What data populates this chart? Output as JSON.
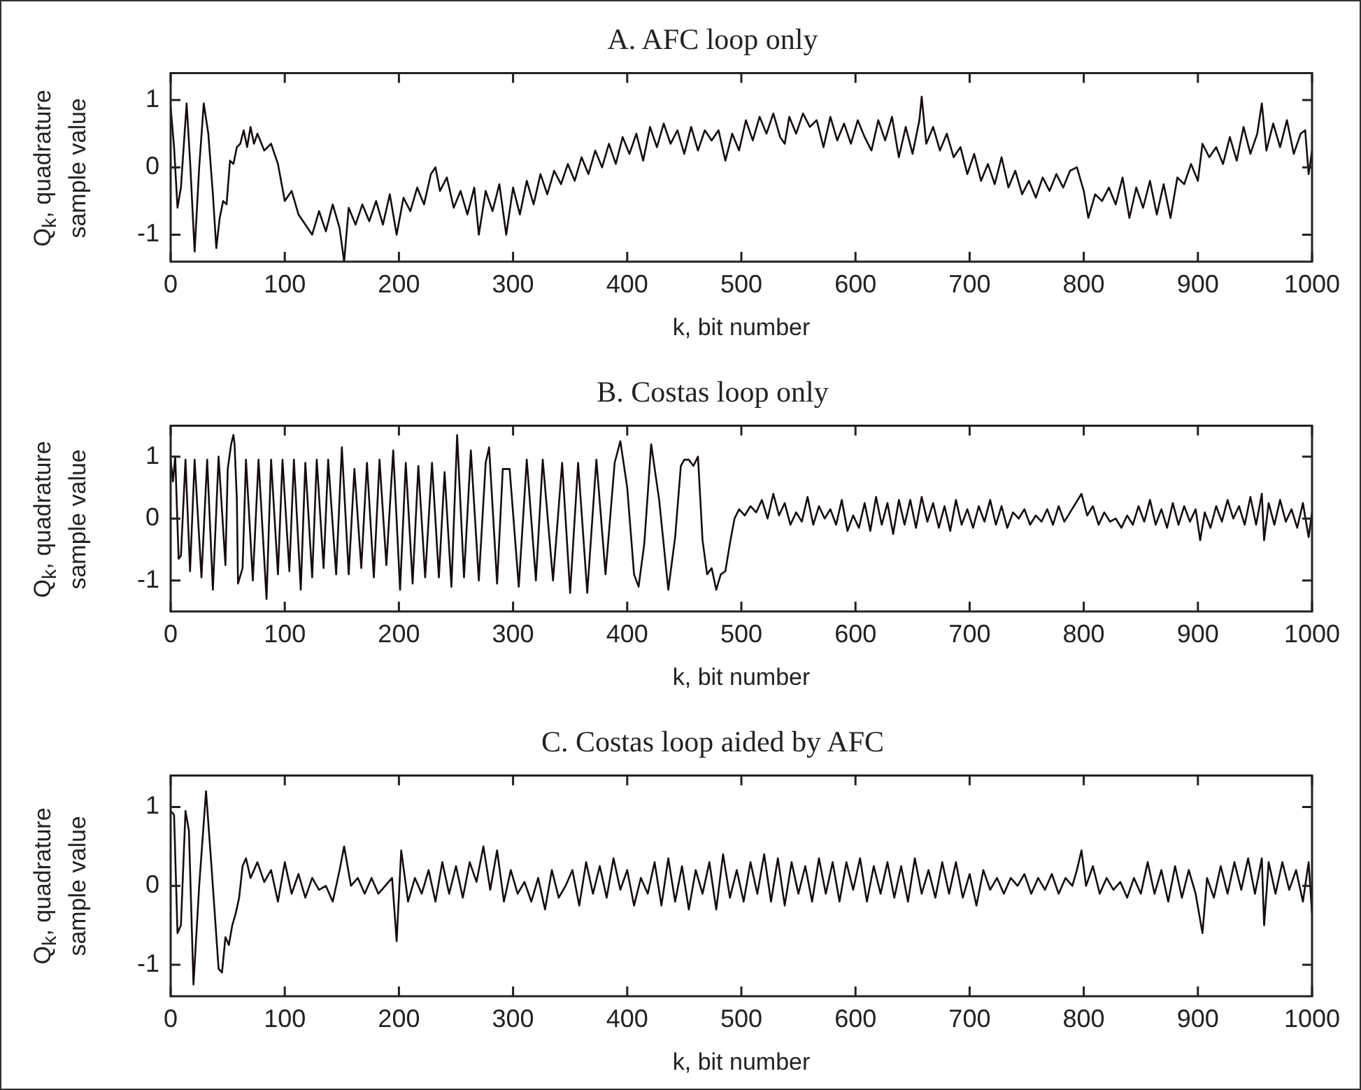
{
  "chart_data": [
    {
      "type": "line",
      "title": "A. AFC loop only",
      "xlabel": "k, bit number",
      "ylabel": "Q$_{k}$, quadrature sample value",
      "color": "#150d0d",
      "xlim": [
        0,
        1000
      ],
      "xticks": [
        0,
        100,
        200,
        300,
        400,
        500,
        600,
        700,
        800,
        900,
        1000
      ],
      "ylim": [
        -1.4,
        1.4
      ],
      "yticks": [
        -1,
        0,
        1
      ],
      "x": [
        0,
        3,
        6,
        9,
        14,
        17,
        21,
        25,
        29,
        33,
        37,
        40,
        43,
        46,
        49,
        52,
        55,
        58,
        61,
        64,
        67,
        70,
        73,
        76,
        82,
        88,
        94,
        100,
        106,
        112,
        118,
        124,
        130,
        136,
        142,
        148,
        152,
        156,
        162,
        168,
        174,
        180,
        186,
        192,
        198,
        204,
        210,
        216,
        222,
        228,
        232,
        236,
        242,
        248,
        254,
        260,
        266,
        270,
        276,
        282,
        288,
        294,
        300,
        306,
        312,
        318,
        324,
        330,
        336,
        342,
        348,
        354,
        360,
        366,
        372,
        378,
        384,
        390,
        396,
        402,
        408,
        414,
        420,
        426,
        432,
        438,
        444,
        450,
        456,
        462,
        468,
        474,
        480,
        486,
        492,
        498,
        504,
        510,
        516,
        522,
        528,
        534,
        538,
        542,
        548,
        554,
        560,
        566,
        572,
        578,
        584,
        590,
        596,
        602,
        608,
        614,
        620,
        626,
        632,
        638,
        644,
        650,
        656,
        658,
        662,
        668,
        674,
        680,
        686,
        692,
        698,
        704,
        710,
        716,
        722,
        728,
        734,
        740,
        746,
        752,
        758,
        764,
        770,
        776,
        782,
        788,
        794,
        800,
        804,
        810,
        816,
        822,
        828,
        834,
        840,
        846,
        852,
        858,
        864,
        870,
        876,
        882,
        888,
        894,
        900,
        904,
        910,
        916,
        922,
        928,
        934,
        940,
        946,
        952,
        956,
        960,
        966,
        972,
        978,
        984,
        990,
        994,
        997,
        1000
      ],
      "values": [
        0.9,
        0.3,
        -0.6,
        -0.3,
        0.95,
        0.1,
        -1.25,
        0.0,
        0.95,
        0.5,
        -0.4,
        -1.2,
        -0.75,
        -0.5,
        -0.55,
        0.1,
        0.05,
        0.3,
        0.35,
        0.55,
        0.3,
        0.6,
        0.35,
        0.5,
        0.25,
        0.35,
        0.05,
        -0.5,
        -0.35,
        -0.7,
        -0.85,
        -1.0,
        -0.65,
        -0.95,
        -0.55,
        -0.9,
        -1.4,
        -0.6,
        -0.85,
        -0.55,
        -0.8,
        -0.5,
        -0.85,
        -0.4,
        -1.0,
        -0.45,
        -0.65,
        -0.3,
        -0.55,
        -0.1,
        0.0,
        -0.35,
        -0.15,
        -0.6,
        -0.35,
        -0.7,
        -0.3,
        -1.0,
        -0.35,
        -0.65,
        -0.25,
        -1.0,
        -0.3,
        -0.7,
        -0.2,
        -0.55,
        -0.1,
        -0.4,
        -0.05,
        -0.25,
        0.05,
        -0.2,
        0.15,
        -0.1,
        0.25,
        0.0,
        0.35,
        0.05,
        0.45,
        0.2,
        0.5,
        0.1,
        0.6,
        0.3,
        0.65,
        0.35,
        0.55,
        0.2,
        0.6,
        0.25,
        0.55,
        0.4,
        0.55,
        0.1,
        0.5,
        0.25,
        0.7,
        0.4,
        0.75,
        0.5,
        0.8,
        0.45,
        0.35,
        0.75,
        0.5,
        0.8,
        0.6,
        0.7,
        0.3,
        0.75,
        0.4,
        0.65,
        0.35,
        0.7,
        0.45,
        0.25,
        0.7,
        0.4,
        0.75,
        0.15,
        0.6,
        0.2,
        0.7,
        1.05,
        0.35,
        0.6,
        0.25,
        0.5,
        0.15,
        0.3,
        -0.1,
        0.2,
        -0.2,
        0.05,
        -0.25,
        0.15,
        -0.3,
        -0.05,
        -0.4,
        -0.2,
        -0.45,
        -0.15,
        -0.35,
        -0.1,
        -0.3,
        -0.05,
        0.0,
        -0.35,
        -0.75,
        -0.4,
        -0.5,
        -0.3,
        -0.55,
        -0.15,
        -0.75,
        -0.3,
        -0.6,
        -0.2,
        -0.7,
        -0.25,
        -0.75,
        -0.15,
        -0.25,
        0.05,
        -0.2,
        0.35,
        0.15,
        0.3,
        0.05,
        0.45,
        0.1,
        0.6,
        0.2,
        0.5,
        0.95,
        0.25,
        0.65,
        0.3,
        0.7,
        0.2,
        0.5,
        0.55,
        -0.1,
        0.25
      ]
    },
    {
      "type": "line",
      "title": "B. Costas loop only",
      "xlabel": "k, bit number",
      "ylabel": "Q$_{k}$, quadrature sample value",
      "color": "#150d0d",
      "xlim": [
        0,
        1000
      ],
      "xticks": [
        0,
        100,
        200,
        300,
        400,
        500,
        600,
        700,
        800,
        900,
        1000
      ],
      "ylim": [
        -1.5,
        1.5
      ],
      "yticks": [
        -1,
        0,
        1
      ],
      "x": [
        0,
        2,
        4,
        7,
        9,
        13,
        17,
        21,
        27,
        32,
        37,
        42,
        48,
        50,
        53,
        55,
        56,
        58,
        59,
        63,
        66,
        72,
        77,
        84,
        88,
        94,
        98,
        104,
        108,
        114,
        118,
        124,
        128,
        134,
        138,
        145,
        150,
        156,
        161,
        167,
        172,
        178,
        183,
        189,
        195,
        201,
        206,
        212,
        217,
        223,
        229,
        235,
        240,
        246,
        251,
        257,
        263,
        270,
        276,
        279,
        286,
        291,
        297,
        305,
        312,
        320,
        326,
        335,
        343,
        350,
        357,
        365,
        373,
        381,
        389,
        394,
        400,
        406,
        410,
        415,
        421,
        428,
        436,
        442,
        447,
        450,
        454,
        458,
        462,
        466,
        470,
        474,
        478,
        482,
        486,
        490,
        494,
        498,
        503,
        508,
        513,
        518,
        523,
        528,
        533,
        538,
        543,
        548,
        553,
        558,
        563,
        568,
        573,
        578,
        583,
        588,
        593,
        598,
        603,
        608,
        613,
        618,
        623,
        628,
        633,
        638,
        643,
        648,
        653,
        658,
        663,
        668,
        673,
        678,
        683,
        688,
        693,
        698,
        703,
        708,
        713,
        718,
        723,
        728,
        733,
        738,
        743,
        748,
        753,
        758,
        763,
        768,
        773,
        778,
        783,
        788,
        793,
        798,
        803,
        808,
        813,
        818,
        823,
        828,
        833,
        838,
        843,
        848,
        853,
        858,
        863,
        868,
        873,
        878,
        883,
        888,
        893,
        898,
        902,
        906,
        911,
        916,
        921,
        926,
        931,
        936,
        941,
        946,
        951,
        956,
        958,
        962,
        967,
        972,
        977,
        982,
        987,
        992,
        997,
        1000
      ],
      "values": [
        0.95,
        0.6,
        1.0,
        -0.65,
        -0.6,
        0.95,
        -0.85,
        0.95,
        -0.95,
        0.95,
        -1.15,
        1.0,
        -0.75,
        0.8,
        1.2,
        1.35,
        1.2,
        0.3,
        -1.05,
        -0.8,
        0.95,
        -1.0,
        0.95,
        -1.3,
        0.95,
        -0.9,
        0.95,
        -0.85,
        0.95,
        -1.15,
        0.9,
        -0.95,
        0.95,
        -0.8,
        0.95,
        -0.9,
        1.15,
        -0.9,
        0.8,
        -0.8,
        0.9,
        -0.95,
        0.95,
        -0.75,
        1.1,
        -1.15,
        0.9,
        -1.05,
        0.85,
        -0.95,
        0.9,
        -0.95,
        0.75,
        -1.1,
        1.35,
        -0.95,
        1.1,
        -1.0,
        0.9,
        1.15,
        -1.05,
        0.8,
        0.8,
        -1.1,
        0.95,
        -1.0,
        0.95,
        -1.0,
        0.9,
        -1.2,
        0.9,
        -1.2,
        0.95,
        -0.9,
        0.9,
        1.25,
        0.5,
        -0.9,
        -1.1,
        -0.4,
        1.2,
        0.3,
        -1.15,
        -0.3,
        0.85,
        0.95,
        0.95,
        0.85,
        1.0,
        -0.35,
        -0.9,
        -0.8,
        -1.15,
        -0.9,
        -0.85,
        -0.4,
        0.0,
        0.15,
        0.05,
        0.2,
        0.1,
        0.3,
        0.0,
        0.4,
        0.05,
        0.25,
        -0.1,
        0.1,
        -0.05,
        0.35,
        -0.1,
        0.2,
        0.0,
        0.15,
        -0.1,
        0.3,
        -0.2,
        0.05,
        -0.15,
        0.25,
        -0.2,
        0.35,
        -0.1,
        0.25,
        -0.25,
        0.3,
        -0.1,
        0.3,
        -0.15,
        0.35,
        -0.05,
        0.25,
        -0.15,
        0.2,
        -0.2,
        0.3,
        -0.1,
        0.15,
        -0.15,
        0.2,
        -0.05,
        0.3,
        -0.1,
        0.2,
        -0.15,
        0.1,
        0.0,
        0.15,
        -0.1,
        0.05,
        -0.05,
        0.15,
        -0.1,
        0.2,
        -0.05,
        0.1,
        0.25,
        0.4,
        0.05,
        0.2,
        -0.1,
        0.1,
        -0.05,
        0.0,
        -0.15,
        0.05,
        -0.1,
        0.2,
        -0.05,
        0.3,
        -0.1,
        0.15,
        -0.15,
        0.25,
        -0.1,
        0.2,
        -0.05,
        0.15,
        -0.35,
        0.1,
        -0.15,
        0.2,
        -0.05,
        0.3,
        0.0,
        0.2,
        -0.1,
        0.35,
        -0.1,
        0.4,
        -0.35,
        0.25,
        -0.1,
        0.3,
        -0.05,
        0.15,
        -0.15,
        0.25,
        -0.3,
        0.1
      ]
    },
    {
      "type": "line",
      "title": "C. Costas loop aided by AFC",
      "xlabel": "k, bit number",
      "ylabel": "Q$_{k}$, quadrature sample value",
      "color": "#150d0d",
      "xlim": [
        0,
        1000
      ],
      "xticks": [
        0,
        100,
        200,
        300,
        400,
        500,
        600,
        700,
        800,
        900,
        1000
      ],
      "ylim": [
        -1.4,
        1.4
      ],
      "yticks": [
        -1,
        0,
        1
      ],
      "x": [
        0,
        3,
        6,
        9,
        13,
        16,
        20,
        25,
        31,
        36,
        42,
        45,
        48,
        51,
        54,
        57,
        60,
        63,
        66,
        70,
        76,
        82,
        88,
        94,
        100,
        106,
        112,
        118,
        124,
        130,
        136,
        142,
        148,
        152,
        158,
        164,
        170,
        176,
        182,
        188,
        194,
        198,
        202,
        208,
        214,
        220,
        226,
        232,
        238,
        244,
        250,
        256,
        262,
        268,
        274,
        280,
        286,
        292,
        298,
        304,
        310,
        316,
        322,
        328,
        334,
        340,
        346,
        352,
        358,
        364,
        370,
        376,
        382,
        388,
        394,
        400,
        406,
        412,
        418,
        424,
        430,
        436,
        442,
        448,
        454,
        460,
        466,
        472,
        478,
        484,
        490,
        496,
        502,
        508,
        514,
        520,
        526,
        532,
        538,
        544,
        550,
        556,
        562,
        568,
        574,
        580,
        586,
        592,
        598,
        604,
        610,
        616,
        622,
        628,
        634,
        640,
        646,
        652,
        658,
        664,
        670,
        676,
        682,
        688,
        694,
        700,
        706,
        712,
        718,
        724,
        730,
        736,
        742,
        748,
        754,
        760,
        766,
        772,
        778,
        784,
        790,
        794,
        798,
        802,
        808,
        814,
        820,
        826,
        832,
        838,
        844,
        850,
        856,
        862,
        868,
        874,
        880,
        886,
        892,
        898,
        904,
        908,
        914,
        920,
        926,
        932,
        938,
        944,
        950,
        956,
        958,
        962,
        968,
        974,
        980,
        986,
        992,
        997,
        1000
      ],
      "values": [
        0.95,
        0.9,
        -0.6,
        -0.5,
        0.95,
        0.7,
        -1.25,
        0.0,
        1.2,
        0.2,
        -1.05,
        -1.1,
        -0.65,
        -0.75,
        -0.5,
        -0.35,
        -0.15,
        0.25,
        0.35,
        0.1,
        0.3,
        0.05,
        0.2,
        -0.2,
        0.3,
        -0.1,
        0.15,
        -0.15,
        0.1,
        -0.05,
        0.0,
        -0.2,
        0.2,
        0.5,
        0.0,
        0.1,
        -0.1,
        0.1,
        -0.1,
        0.0,
        0.1,
        -0.7,
        0.45,
        -0.2,
        0.1,
        -0.1,
        0.2,
        -0.2,
        0.3,
        -0.1,
        0.25,
        -0.15,
        0.3,
        0.05,
        0.5,
        -0.05,
        0.45,
        -0.2,
        0.2,
        -0.1,
        0.05,
        -0.2,
        0.1,
        -0.3,
        0.2,
        -0.15,
        0.0,
        0.2,
        -0.25,
        0.3,
        -0.1,
        0.25,
        -0.15,
        0.35,
        -0.05,
        0.2,
        -0.25,
        0.1,
        -0.1,
        0.3,
        -0.25,
        0.35,
        -0.2,
        0.25,
        -0.3,
        0.2,
        -0.1,
        0.3,
        -0.3,
        0.4,
        -0.15,
        0.2,
        -0.2,
        0.3,
        -0.1,
        0.4,
        -0.2,
        0.35,
        -0.25,
        0.3,
        -0.1,
        0.25,
        -0.2,
        0.35,
        -0.1,
        0.3,
        -0.2,
        0.3,
        -0.05,
        0.35,
        -0.2,
        0.25,
        -0.1,
        0.3,
        -0.15,
        0.25,
        -0.2,
        0.35,
        -0.1,
        0.2,
        -0.15,
        0.3,
        -0.1,
        0.3,
        -0.15,
        0.15,
        -0.25,
        0.2,
        -0.05,
        0.1,
        -0.1,
        0.1,
        0.0,
        0.15,
        -0.1,
        0.1,
        -0.05,
        0.15,
        -0.1,
        0.1,
        0.0,
        0.2,
        0.45,
        0.0,
        0.25,
        -0.1,
        0.1,
        -0.05,
        0.05,
        -0.15,
        0.1,
        -0.1,
        0.3,
        -0.1,
        0.2,
        -0.2,
        0.25,
        -0.15,
        0.2,
        -0.1,
        -0.6,
        0.1,
        -0.15,
        0.25,
        -0.1,
        0.3,
        -0.05,
        0.35,
        -0.1,
        0.35,
        -0.5,
        0.3,
        -0.1,
        0.3,
        -0.05,
        0.2,
        -0.2,
        0.3,
        -0.35
      ]
    }
  ]
}
